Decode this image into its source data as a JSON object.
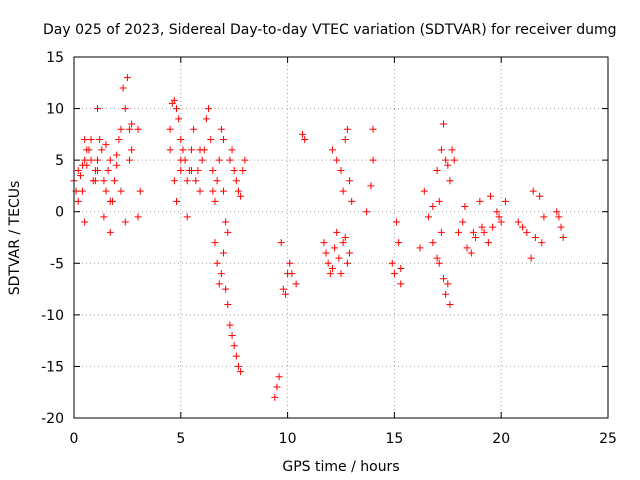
{
  "colors": {
    "series": "#ff0000",
    "grid": "#a0a0a0",
    "frame": "#000000"
  },
  "chart_data": {
    "type": "scatter",
    "title": "Day 025 of 2023, Sidereal Day-to-day VTEC variation (SDTVAR) for receiver dumg",
    "xlabel": "GPS time / hours",
    "ylabel": "SDTVAR / TECUs",
    "xlim": [
      0,
      25
    ],
    "ylim": [
      -20,
      15
    ],
    "xticks": [
      0,
      5,
      10,
      15,
      20,
      25
    ],
    "xtick_labels": [
      "0",
      "5",
      "10",
      "15",
      "20",
      "25"
    ],
    "yticks": [
      -20,
      -15,
      -10,
      -5,
      0,
      5,
      10,
      15
    ],
    "ytick_labels": [
      "-20",
      "-15",
      "-10",
      "-5",
      "0",
      "5",
      "10",
      "15"
    ],
    "grid": true,
    "marker": "plus",
    "series": [
      {
        "name": "SDTVAR",
        "x": [
          0.0,
          0.1,
          0.2,
          0.3,
          0.4,
          0.5,
          0.5,
          0.6,
          0.7,
          0.8,
          0.9,
          1.0,
          1.0,
          1.1,
          1.2,
          1.3,
          1.4,
          1.5,
          1.5,
          1.6,
          1.7,
          1.8,
          1.9,
          2.0,
          2.0,
          2.1,
          2.2,
          2.3,
          2.4,
          2.5,
          2.6,
          2.6,
          2.7,
          2.7,
          3.0,
          3.0,
          3.1,
          0.2,
          0.4,
          0.6,
          0.8,
          1.1,
          1.4,
          1.7,
          2.2,
          2.4,
          0.5,
          1.1,
          1.7,
          4.5,
          4.6,
          4.7,
          4.8,
          4.9,
          5.0,
          5.0,
          5.1,
          5.2,
          5.3,
          5.4,
          5.5,
          5.6,
          5.7,
          5.8,
          5.9,
          6.0,
          4.5,
          4.7,
          4.8,
          5.0,
          5.3,
          5.5,
          5.9,
          6.1,
          6.2,
          6.3,
          6.4,
          6.5,
          6.5,
          6.6,
          6.7,
          6.8,
          6.9,
          7.0,
          7.0,
          7.1,
          7.2,
          7.3,
          7.4,
          7.5,
          7.6,
          7.7,
          7.8,
          7.9,
          8.0,
          6.6,
          6.7,
          6.8,
          6.9,
          7.0,
          7.1,
          7.2,
          7.3,
          7.4,
          7.5,
          7.6,
          7.7,
          7.8,
          9.4,
          9.5,
          9.6,
          9.7,
          9.8,
          9.9,
          10.0,
          10.1,
          10.2,
          10.4,
          10.7,
          10.8,
          11.7,
          11.8,
          11.9,
          12.0,
          12.1,
          12.2,
          12.3,
          12.4,
          12.5,
          12.6,
          12.7,
          12.8,
          12.9,
          12.1,
          12.3,
          12.5,
          12.6,
          12.7,
          12.8,
          12.9,
          13.0,
          13.7,
          13.9,
          14.0,
          14.0,
          14.9,
          15.0,
          15.1,
          15.2,
          15.3,
          15.3,
          16.2,
          16.4,
          16.6,
          16.8,
          17.0,
          17.1,
          17.2,
          17.3,
          17.4,
          17.5,
          17.6,
          17.7,
          17.8,
          16.8,
          17.0,
          17.2,
          17.4,
          17.6,
          17.1,
          17.3,
          17.5,
          18.0,
          18.2,
          18.4,
          18.6,
          18.8,
          19.0,
          19.2,
          19.4,
          19.6,
          19.8,
          20.0,
          20.2,
          18.3,
          18.7,
          19.1,
          19.5,
          19.9,
          20.8,
          21.0,
          21.2,
          21.4,
          21.6,
          21.8,
          22.0,
          21.5,
          21.9,
          22.6,
          22.7,
          22.8,
          22.9
        ],
        "y": [
          3.0,
          2.0,
          4.0,
          3.5,
          2.0,
          5.0,
          -1.0,
          4.5,
          6.0,
          7.0,
          3.0,
          4.0,
          3.0,
          5.0,
          7.0,
          6.0,
          3.0,
          2.0,
          6.5,
          4.0,
          5.0,
          1.0,
          3.0,
          4.5,
          5.5,
          7.0,
          8.0,
          12.0,
          10.0,
          13.0,
          5.0,
          8.0,
          6.0,
          8.5,
          8.0,
          -0.5,
          2.0,
          1.0,
          4.5,
          6.0,
          5.0,
          4.0,
          -0.5,
          1.0,
          2.0,
          -1.0,
          7.0,
          10.0,
          -2.0,
          8.0,
          10.5,
          10.8,
          10.0,
          9.0,
          7.0,
          4.0,
          6.0,
          5.0,
          3.0,
          4.0,
          6.0,
          8.0,
          3.0,
          4.0,
          6.0,
          5.0,
          6.0,
          3.0,
          1.0,
          5.0,
          -0.5,
          4.0,
          2.0,
          6.0,
          9.0,
          10.0,
          7.0,
          4.0,
          2.0,
          1.0,
          3.0,
          5.0,
          8.0,
          7.0,
          2.0,
          -1.0,
          -2.0,
          5.0,
          6.0,
          4.0,
          3.0,
          2.0,
          1.5,
          4.0,
          5.0,
          -3.0,
          -5.0,
          -7.0,
          -6.0,
          -4.0,
          -7.5,
          -9.0,
          -11.0,
          -12.0,
          -13.0,
          -14.0,
          -15.0,
          -15.5,
          -18.0,
          -17.0,
          -16.0,
          -3.0,
          -7.5,
          -8.0,
          -6.0,
          -5.0,
          -6.0,
          -7.0,
          7.5,
          7.0,
          -3.0,
          -4.0,
          -5.0,
          -6.0,
          -5.5,
          -3.5,
          -2.0,
          -4.5,
          -6.0,
          -3.0,
          -2.5,
          -5.0,
          -4.0,
          6.0,
          5.0,
          4.0,
          2.0,
          7.0,
          8.0,
          3.0,
          1.0,
          0.0,
          2.5,
          5.0,
          8.0,
          -5.0,
          -6.0,
          -1.0,
          -3.0,
          -7.0,
          -5.5,
          -3.5,
          2.0,
          -0.5,
          0.5,
          4.0,
          1.0,
          6.0,
          8.5,
          5.0,
          4.5,
          3.0,
          6.0,
          5.0,
          -3.0,
          -4.5,
          -2.0,
          -8.0,
          -9.0,
          -5.0,
          -6.5,
          -7.0,
          -2.0,
          -1.0,
          -3.5,
          -4.0,
          -2.5,
          1.0,
          -2.0,
          -3.0,
          -1.5,
          0.0,
          -1.0,
          1.0,
          0.5,
          -2.0,
          -1.5,
          1.5,
          -0.5,
          -1.0,
          -1.5,
          -2.0,
          -4.5,
          -2.5,
          1.5,
          -0.5,
          2.0,
          -3.0,
          0.0,
          -0.5,
          -1.5,
          -2.5
        ]
      }
    ]
  }
}
